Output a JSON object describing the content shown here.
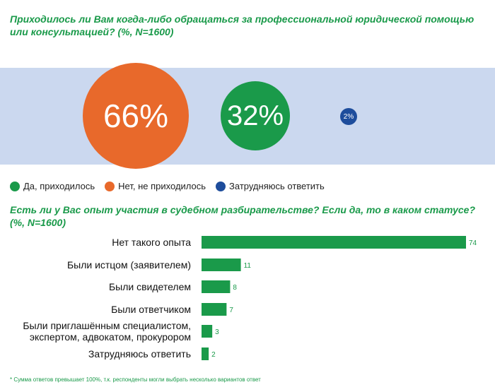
{
  "q1": {
    "question": "Приходилось ли Вам когда-либо обращаться за профессиональной юридической помощью или консультацией? (%, N=1600)",
    "circles": [
      {
        "label": "66%",
        "value": 66,
        "color": "#e8692b"
      },
      {
        "label": "32%",
        "value": 32,
        "color": "#1a9a4a"
      },
      {
        "label": "2%",
        "value": 2,
        "color": "#1e4d9c"
      }
    ],
    "legend": [
      {
        "label": "Да, приходилось",
        "color": "#1a9a4a"
      },
      {
        "label": "Нет, не приходилось",
        "color": "#e8692b"
      },
      {
        "label": "Затрудняюсь ответить",
        "color": "#1e4d9c"
      }
    ]
  },
  "q2": {
    "question": "Есть ли у Вас опыт участия в судебном разбирательстве? Если да, то в каком статусе? (%, N=1600)"
  },
  "chart_data": {
    "type": "bar",
    "orientation": "horizontal",
    "categories": [
      [
        "Нет такого опыта"
      ],
      [
        "Были истцом (заявителем)"
      ],
      [
        "Были свидетелем"
      ],
      [
        "Были ответчиком"
      ],
      [
        "Были приглашённым специалистом,",
        "экспертом, адвокатом, прокурором"
      ],
      [
        "Затрудняюсь ответить"
      ]
    ],
    "values": [
      74,
      11,
      8,
      7,
      3,
      2
    ],
    "value_labels": [
      "74",
      "11",
      "8",
      "7",
      "3",
      "2"
    ],
    "bar_color": "#1a9a4a",
    "xlim": [
      0,
      74
    ]
  },
  "footnote": "* Сумма ответов превышает 100%, т.к. респонденты могли выбрать несколько вариантов ответ"
}
